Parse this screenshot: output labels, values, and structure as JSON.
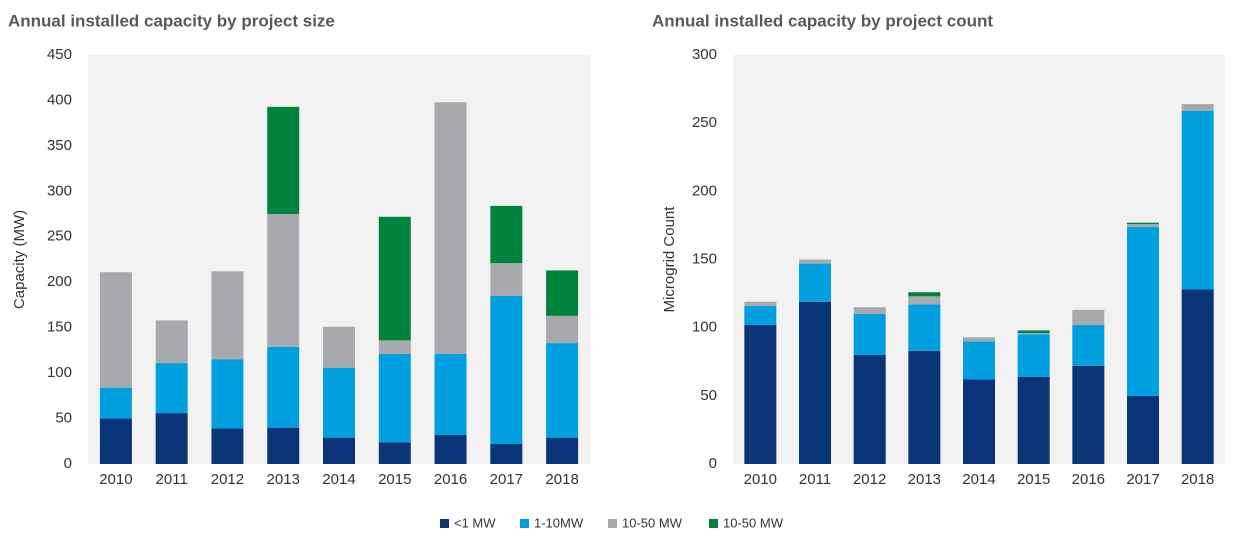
{
  "chart_data": [
    {
      "type": "stacked_bar",
      "title": "Annual installed capacity by project size",
      "y_label": "Capacity  (MW)",
      "categories": [
        "2010",
        "2011",
        "2012",
        "2013",
        "2014",
        "2015",
        "2016",
        "2017",
        "2018"
      ],
      "ylim": [
        0,
        450
      ],
      "yticks": [
        0,
        50,
        100,
        150,
        200,
        250,
        300,
        350,
        400,
        450
      ],
      "series": [
        {
          "name": "<1 MW",
          "color": "#0a3478",
          "values": [
            50,
            56,
            39,
            40,
            29,
            24,
            32,
            22,
            29
          ]
        },
        {
          "name": "1-10MW",
          "color": "#009fdf",
          "values": [
            34,
            55,
            76,
            89,
            77,
            97,
            89,
            163,
            104
          ]
        },
        {
          "name": "10-50 MW",
          "color": "#a7a9ac",
          "values": [
            127,
            47,
            97,
            146,
            45,
            15,
            277,
            36,
            30
          ]
        },
        {
          "name": "10-50 MW",
          "color": "#00843d",
          "values": [
            0,
            0,
            0,
            118,
            0,
            136,
            0,
            63,
            50
          ]
        }
      ]
    },
    {
      "type": "stacked_bar",
      "title": "Annual installed capacity by project count",
      "y_label": "Microgrid Count",
      "categories": [
        "2010",
        "2011",
        "2012",
        "2013",
        "2014",
        "2015",
        "2016",
        "2017",
        "2018"
      ],
      "ylim": [
        0,
        300
      ],
      "yticks": [
        0,
        50,
        100,
        150,
        200,
        250,
        300
      ],
      "series": [
        {
          "name": "<1 MW",
          "color": "#0a3478",
          "values": [
            102,
            119,
            80,
            83,
            62,
            64,
            72,
            50,
            128
          ]
        },
        {
          "name": "1-10MW",
          "color": "#009fdf",
          "values": [
            14,
            28,
            30,
            34,
            28,
            31,
            30,
            124,
            131
          ]
        },
        {
          "name": "10-50 MW",
          "color": "#a7a9ac",
          "values": [
            3,
            3,
            5,
            6,
            3,
            1,
            11,
            2,
            5
          ]
        },
        {
          "name": "10-50 MW",
          "color": "#00843d",
          "values": [
            0,
            0,
            0,
            3,
            0,
            2,
            0,
            1,
            0
          ]
        }
      ]
    }
  ]
}
